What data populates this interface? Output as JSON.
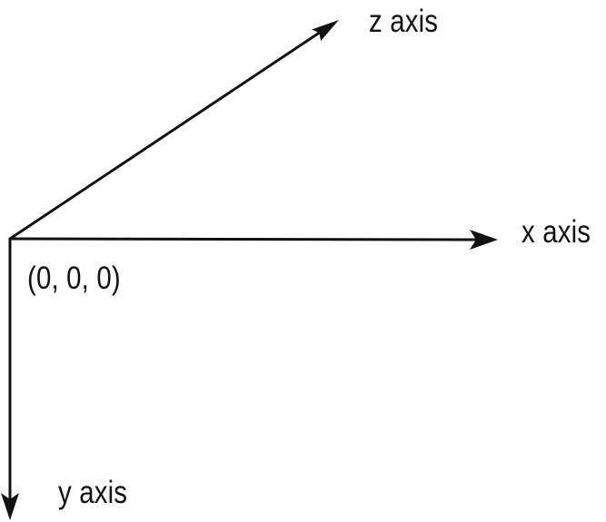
{
  "diagram": {
    "axes": {
      "z": {
        "label": "z axis"
      },
      "x": {
        "label": "x axis"
      },
      "y": {
        "label": "y axis"
      }
    },
    "origin": {
      "label": "(0, 0, 0)"
    },
    "colors": {
      "line": "#111111",
      "background": "#ffffff"
    }
  }
}
